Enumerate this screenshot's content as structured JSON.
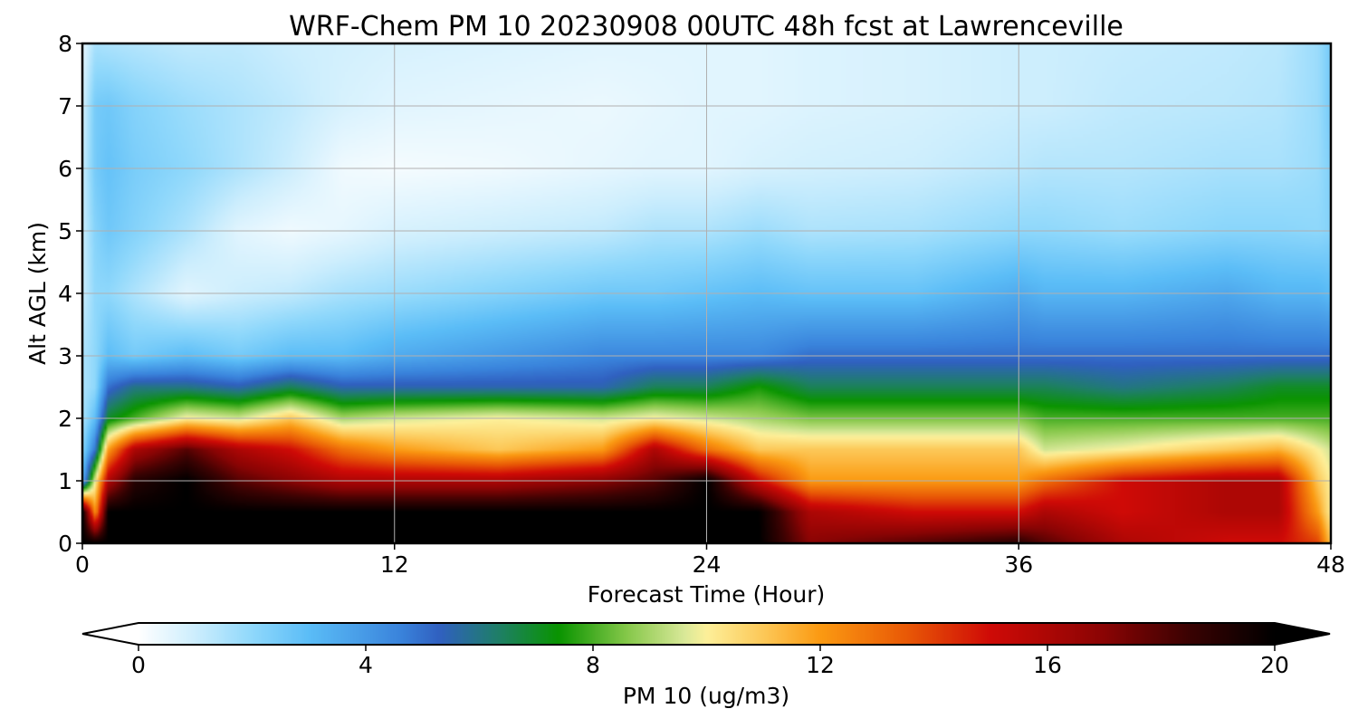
{
  "chart_data": {
    "type": "heatmap",
    "title": "WRF-Chem PM 10  20230908 00UTC 48h fcst at Lawrenceville",
    "xlabel": "Forecast Time (Hour)",
    "ylabel": "Alt AGL (km)",
    "xlim": [
      0,
      48
    ],
    "ylim": [
      0,
      8
    ],
    "xticks": [
      0,
      12,
      24,
      36,
      48
    ],
    "yticks": [
      0,
      1,
      2,
      3,
      4,
      5,
      6,
      7,
      8
    ],
    "grid": true,
    "colorbar": {
      "label": "PM 10  (ug/m3)",
      "range": [
        0,
        20
      ],
      "ticks": [
        0,
        4,
        8,
        12,
        16,
        20
      ],
      "extend": "both",
      "orientation": "horizontal",
      "colormap": [
        {
          "v": 0,
          "c": "#ffffff"
        },
        {
          "v": 1,
          "c": "#cdeefd"
        },
        {
          "v": 2,
          "c": "#8fd8fb"
        },
        {
          "v": 3,
          "c": "#5bbdf7"
        },
        {
          "v": 4.6,
          "c": "#3a84dc"
        },
        {
          "v": 5.3,
          "c": "#3060c0"
        },
        {
          "v": 6.3,
          "c": "#1f7e6a"
        },
        {
          "v": 7.4,
          "c": "#0a9400"
        },
        {
          "v": 8.6,
          "c": "#86c84a"
        },
        {
          "v": 9.6,
          "c": "#d8e898"
        },
        {
          "v": 10,
          "c": "#fdf09a"
        },
        {
          "v": 11,
          "c": "#fcc858"
        },
        {
          "v": 12,
          "c": "#fb9a12"
        },
        {
          "v": 13.5,
          "c": "#e95a06"
        },
        {
          "v": 15,
          "c": "#cf0a06"
        },
        {
          "v": 17,
          "c": "#8a0404"
        },
        {
          "v": 18.5,
          "c": "#3a0202"
        },
        {
          "v": 20,
          "c": "#000000"
        }
      ]
    },
    "x_hours": [
      0,
      0.5,
      1,
      2,
      4,
      6,
      8,
      10,
      12,
      16,
      20,
      22,
      24,
      26,
      28,
      32,
      36,
      37,
      40,
      44,
      46,
      47.5,
      48
    ],
    "altitudes_km": [
      0,
      0.5,
      1,
      1.5,
      2,
      2.5,
      3,
      4,
      5,
      6,
      7,
      8
    ],
    "pm10": [
      [
        20,
        20,
        20,
        20,
        20,
        20,
        20,
        20,
        20,
        20,
        20,
        20,
        20,
        20,
        17,
        18,
        19,
        18,
        16,
        15,
        15,
        14,
        11
      ],
      [
        20,
        12,
        20,
        20,
        20,
        20,
        20,
        20,
        20,
        20,
        20,
        20,
        20,
        20,
        16,
        15,
        15,
        16,
        15,
        16,
        16,
        12,
        10
      ],
      [
        3,
        10,
        16,
        19,
        20,
        18,
        17,
        16,
        16,
        16,
        17,
        18,
        20,
        15,
        12,
        12,
        12,
        13,
        15,
        16,
        16,
        11,
        10
      ],
      [
        2,
        5,
        12,
        16,
        18,
        16,
        15,
        13,
        12,
        11,
        12,
        16,
        13,
        11,
        11,
        11,
        11,
        9.5,
        10,
        11,
        11.5,
        10,
        9.5
      ],
      [
        1.5,
        3,
        7,
        8,
        10,
        9.5,
        11,
        9,
        9.5,
        10,
        9.5,
        10,
        9.5,
        9,
        8.5,
        8.5,
        8.5,
        8,
        8,
        8,
        8,
        8,
        8
      ],
      [
        1.5,
        2,
        5,
        6,
        6,
        5.5,
        6.5,
        5.5,
        5.5,
        5.5,
        5.5,
        6.5,
        6.5,
        7.5,
        6.5,
        6.5,
        6.5,
        6.5,
        6,
        6.5,
        7,
        7,
        7
      ],
      [
        1.5,
        2,
        3,
        2.5,
        3,
        2.5,
        3,
        3,
        3.5,
        4,
        4.5,
        4.5,
        4.5,
        4.5,
        5,
        5,
        5,
        5,
        5,
        5,
        5,
        5,
        5
      ],
      [
        1,
        2,
        2,
        1.5,
        0.6,
        1,
        1.2,
        1.6,
        1.8,
        2.2,
        2.6,
        2.6,
        2.8,
        3,
        2.8,
        2.8,
        3.5,
        3.2,
        3.2,
        3.6,
        3.2,
        3.2,
        3
      ],
      [
        1,
        2.2,
        2.6,
        2.2,
        1.5,
        0.6,
        0.3,
        0.5,
        0.8,
        1,
        1.2,
        1.5,
        1.5,
        1.8,
        1.5,
        1.6,
        2,
        2,
        1.8,
        2.1,
        2.1,
        2,
        2.2
      ],
      [
        1,
        2.5,
        2.8,
        2.4,
        2,
        1.5,
        1,
        0.3,
        0.2,
        0.3,
        0.5,
        0.6,
        0.6,
        0.8,
        0.9,
        1,
        1.3,
        1.4,
        1.4,
        1.6,
        1.6,
        1.8,
        2.3
      ],
      [
        0.8,
        2.5,
        2.6,
        2.2,
        1.8,
        1.5,
        1.2,
        0.8,
        0.6,
        0.5,
        0.4,
        0.5,
        0.6,
        0.6,
        0.7,
        0.8,
        1,
        1,
        1.2,
        1.3,
        1.4,
        1.8,
        2.5
      ],
      [
        0.5,
        1.6,
        1.5,
        1.4,
        1.2,
        1.2,
        1,
        0.9,
        0.8,
        0.7,
        0.6,
        0.6,
        0.6,
        0.6,
        0.7,
        0.8,
        1,
        1,
        1.1,
        1.2,
        1.3,
        1.8,
        2.5
      ]
    ]
  }
}
